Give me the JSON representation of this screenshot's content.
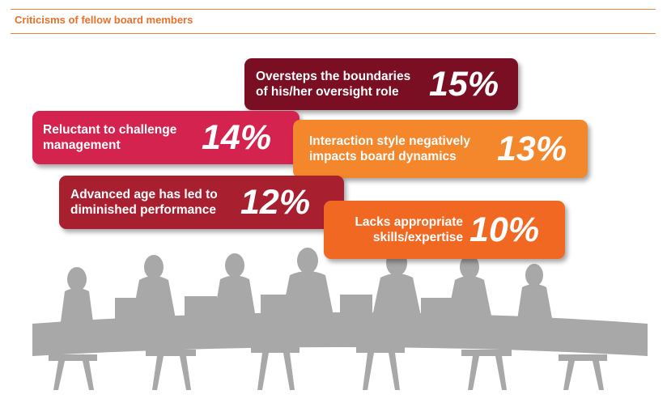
{
  "header": {
    "title": "Criticisms of fellow board members"
  },
  "criticisms": [
    {
      "label": "Oversteps the boundaries of his/her oversight role",
      "percent": "15%",
      "color": "#7a0f23"
    },
    {
      "label": "Reluctant to challenge management",
      "percent": "14%",
      "color": "#d4234e"
    },
    {
      "label": "Interaction style negatively impacts board dynamics",
      "percent": "13%",
      "color": "#f4862b"
    },
    {
      "label": "Advanced age has led to diminished performance",
      "percent": "12%",
      "color": "#a82030"
    },
    {
      "label": "Lacks appropriate skills/expertise",
      "percent": "10%",
      "color": "#f06822"
    }
  ],
  "illustration": {
    "name": "boardroom-meeting-silhouette",
    "color": "#a6a6a6"
  }
}
